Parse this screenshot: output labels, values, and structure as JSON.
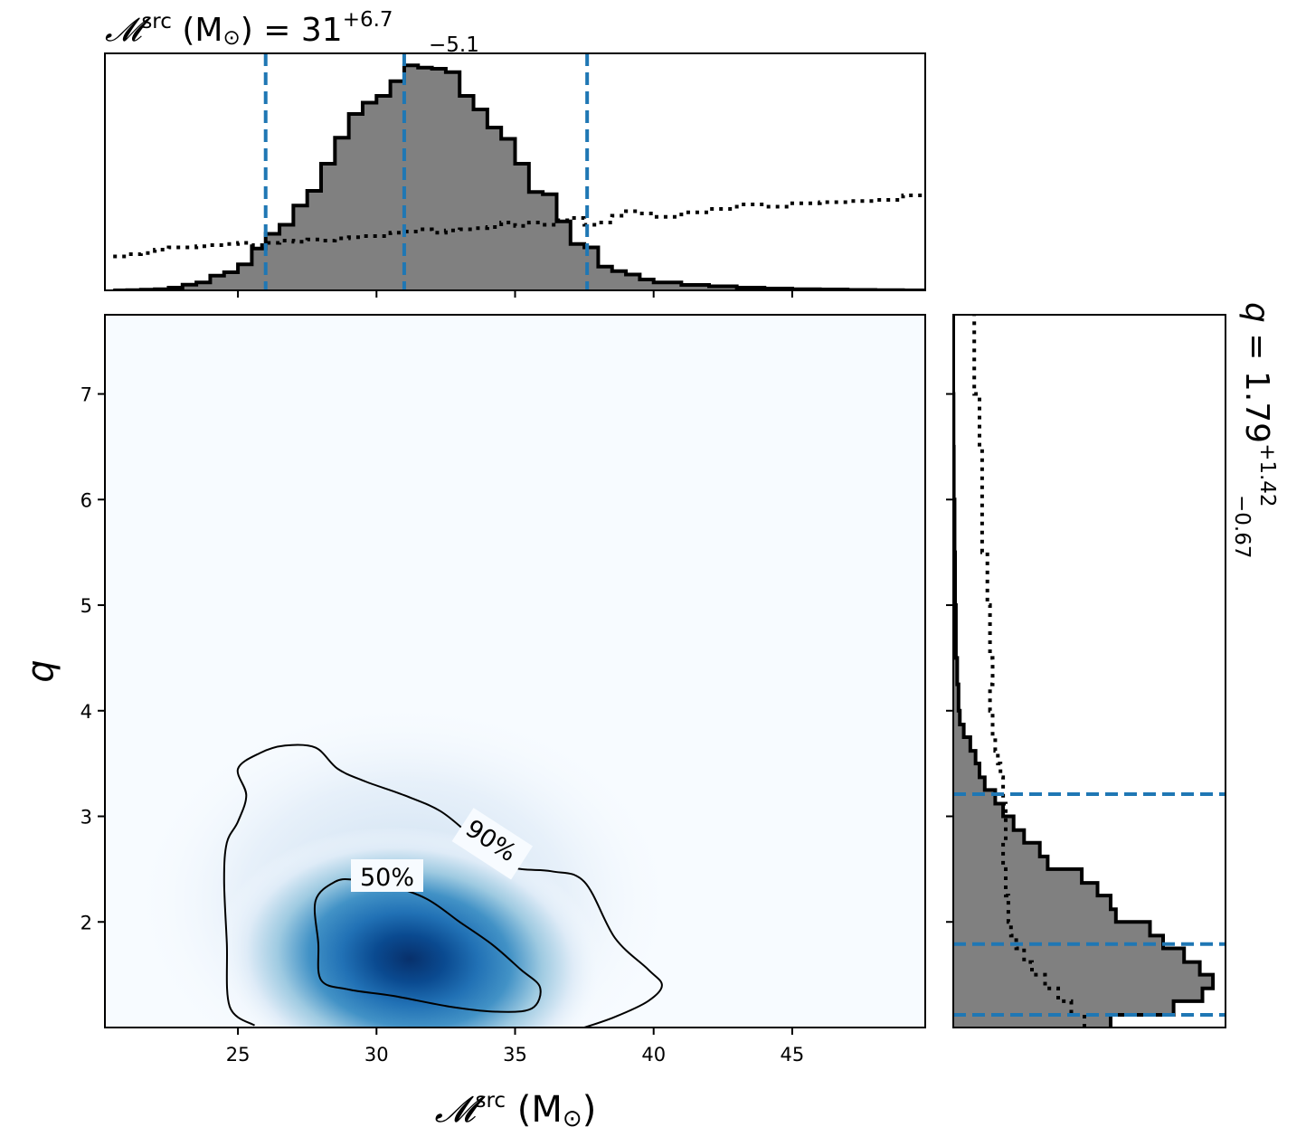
{
  "chart_data": {
    "type": "corner",
    "mc_marginal": {
      "type": "histogram",
      "title": {
        "symbol": "𝓜",
        "sup": "src",
        "unit": " (M",
        "unit_close": ") = ",
        "value": "31",
        "upper": "+6.7",
        "lower": "−5.1"
      },
      "quantile_lines": [
        26.0,
        31.0,
        37.6
      ],
      "bins": {
        "edges": [
          20.5,
          21.0,
          21.5,
          22.0,
          22.5,
          23.0,
          23.5,
          24.0,
          24.5,
          25.0,
          25.5,
          26.0,
          26.5,
          27.0,
          27.5,
          28.0,
          28.5,
          29.0,
          29.5,
          30.0,
          30.5,
          31.0,
          31.5,
          32.0,
          32.5,
          33.0,
          33.5,
          34.0,
          34.5,
          35.0,
          35.5,
          36.0,
          36.5,
          37.0,
          37.5,
          38.0,
          38.5,
          39.0,
          39.5,
          40.0,
          41.0,
          42.0,
          43.0,
          44.0,
          45.0,
          46.0,
          47.0,
          48.0,
          49.0,
          49.8
        ],
        "posterior": [
          0.0,
          0.001,
          0.003,
          0.005,
          0.012,
          0.025,
          0.035,
          0.065,
          0.08,
          0.115,
          0.185,
          0.25,
          0.29,
          0.375,
          0.44,
          0.56,
          0.675,
          0.78,
          0.83,
          0.86,
          0.925,
          0.995,
          0.985,
          0.98,
          0.965,
          0.86,
          0.8,
          0.72,
          0.67,
          0.56,
          0.435,
          0.425,
          0.305,
          0.205,
          0.19,
          0.105,
          0.085,
          0.07,
          0.048,
          0.035,
          0.024,
          0.018,
          0.012,
          0.008,
          0.005,
          0.004,
          0.002,
          0.001,
          0.0
        ],
        "prior": [
          0.15,
          0.16,
          0.165,
          0.18,
          0.19,
          0.19,
          0.195,
          0.2,
          0.205,
          0.21,
          0.2,
          0.21,
          0.22,
          0.215,
          0.225,
          0.22,
          0.23,
          0.235,
          0.24,
          0.24,
          0.255,
          0.26,
          0.27,
          0.255,
          0.265,
          0.27,
          0.275,
          0.28,
          0.3,
          0.285,
          0.3,
          0.29,
          0.31,
          0.32,
          0.29,
          0.3,
          0.33,
          0.35,
          0.34,
          0.325,
          0.345,
          0.36,
          0.38,
          0.37,
          0.385,
          0.39,
          0.395,
          0.4,
          0.42
        ]
      }
    },
    "q_marginal": {
      "type": "histogram",
      "orientation": "horizontal",
      "title": {
        "symbol": "q",
        "text": " = 1.79",
        "upper": "+1.42",
        "lower": "−0.67"
      },
      "quantile_lines": [
        1.12,
        1.79,
        3.21
      ],
      "bins": {
        "edges": [
          1.0,
          1.12,
          1.25,
          1.37,
          1.5,
          1.62,
          1.75,
          1.87,
          2.0,
          2.12,
          2.25,
          2.37,
          2.5,
          2.62,
          2.75,
          2.87,
          3.0,
          3.12,
          3.25,
          3.37,
          3.5,
          3.62,
          3.75,
          3.87,
          4.0,
          4.25,
          4.5,
          5.0,
          5.5,
          6.0,
          6.5,
          7.0,
          7.75
        ],
        "posterior": [
          0.6,
          0.84,
          0.95,
          0.99,
          0.94,
          0.88,
          0.8,
          0.75,
          0.62,
          0.6,
          0.55,
          0.49,
          0.36,
          0.33,
          0.27,
          0.23,
          0.19,
          0.16,
          0.12,
          0.1,
          0.085,
          0.065,
          0.04,
          0.025,
          0.02,
          0.015,
          0.01,
          0.007,
          0.005,
          0.002,
          0.001,
          0.0
        ],
        "prior": [
          0.5,
          0.45,
          0.4,
          0.35,
          0.3,
          0.27,
          0.24,
          0.22,
          0.21,
          0.21,
          0.2,
          0.2,
          0.19,
          0.19,
          0.2,
          0.2,
          0.2,
          0.19,
          0.19,
          0.18,
          0.17,
          0.16,
          0.15,
          0.15,
          0.14,
          0.15,
          0.14,
          0.13,
          0.11,
          0.11,
          0.1,
          0.08
        ]
      }
    },
    "joint": {
      "type": "density",
      "xlabel": {
        "symbol": "𝓜",
        "sup": "src",
        "unit": " (M",
        "unit_close": ")"
      },
      "ylabel": "q",
      "xlim": [
        20.2,
        49.8
      ],
      "ylim": [
        1.0,
        7.75
      ],
      "xticks": [
        25,
        30,
        35,
        40,
        45
      ],
      "yticks": [
        2,
        3,
        4,
        5,
        6,
        7
      ],
      "peak": {
        "x": 31.2,
        "y": 1.65
      },
      "colormap": "Blues",
      "contours": [
        {
          "label": "90%",
          "points": [
            [
              25.6,
              1.02
            ],
            [
              24.7,
              1.2
            ],
            [
              24.6,
              1.8
            ],
            [
              24.5,
              2.4
            ],
            [
              24.6,
              2.75
            ],
            [
              25.0,
              2.95
            ],
            [
              25.3,
              3.2
            ],
            [
              25.0,
              3.45
            ],
            [
              25.8,
              3.6
            ],
            [
              26.7,
              3.67
            ],
            [
              27.8,
              3.65
            ],
            [
              28.6,
              3.45
            ],
            [
              29.6,
              3.33
            ],
            [
              31.0,
              3.2
            ],
            [
              32.3,
              3.05
            ],
            [
              33.4,
              2.82
            ],
            [
              34.8,
              2.53
            ],
            [
              36.3,
              2.48
            ],
            [
              37.5,
              2.38
            ],
            [
              38.6,
              1.85
            ],
            [
              39.8,
              1.55
            ],
            [
              40.3,
              1.4
            ],
            [
              39.8,
              1.25
            ],
            [
              38.6,
              1.1
            ],
            [
              37.5,
              1.0
            ]
          ]
        },
        {
          "label": "50%",
          "points": [
            [
              27.8,
              2.2
            ],
            [
              28.5,
              2.38
            ],
            [
              29.2,
              2.4
            ],
            [
              30.4,
              2.35
            ],
            [
              31.8,
              2.22
            ],
            [
              33.0,
              2.0
            ],
            [
              34.2,
              1.78
            ],
            [
              35.2,
              1.55
            ],
            [
              35.9,
              1.38
            ],
            [
              35.6,
              1.18
            ],
            [
              34.3,
              1.15
            ],
            [
              32.6,
              1.2
            ],
            [
              30.6,
              1.3
            ],
            [
              29.0,
              1.36
            ],
            [
              28.0,
              1.45
            ],
            [
              27.9,
              1.8
            ]
          ]
        }
      ]
    }
  }
}
